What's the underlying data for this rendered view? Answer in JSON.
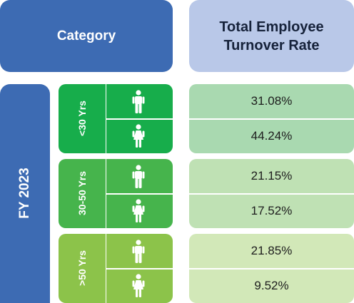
{
  "header": {
    "category": "Category",
    "rate_line1": "Total Employee",
    "rate_line2": "Turnover Rate"
  },
  "fiscal_year": "FY 2023",
  "colors": {
    "header_blue": "#3d6bb3",
    "header_light_blue": "#b9c8e8",
    "group_under_30": "#17ad4b",
    "group_30_50": "#46b44c",
    "group_over_50": "#8cc34a",
    "rate_under_30": "#a9d9b0",
    "rate_30_50": "#bfe1b4",
    "rate_over_50": "#d2e8b8"
  },
  "groups": [
    {
      "age": "<30 Yrs",
      "male_icon": "male-icon",
      "female_icon": "female-icon",
      "male_rate": "31.08%",
      "female_rate": "44.24%"
    },
    {
      "age": "30-50 Yrs",
      "male_icon": "male-icon",
      "female_icon": "female-icon",
      "male_rate": "21.15%",
      "female_rate": "17.52%"
    },
    {
      "age": ">50 Yrs",
      "male_icon": "male-icon",
      "female_icon": "female-icon",
      "male_rate": "21.85%",
      "female_rate": "9.52%"
    }
  ]
}
